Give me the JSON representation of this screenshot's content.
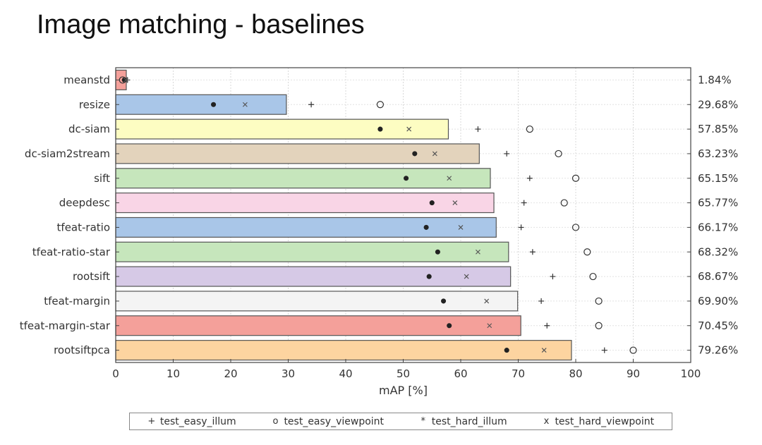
{
  "slide": {
    "title": "Image matching - baselines"
  },
  "chart_data": {
    "type": "bar",
    "orientation": "horizontal",
    "title": "Image matching - baselines",
    "xlabel": "mAP [%]",
    "ylabel": "",
    "xlim": [
      0,
      100
    ],
    "xticks": [
      "0",
      "10",
      "20",
      "30",
      "40",
      "50",
      "60",
      "70",
      "80",
      "90",
      "100"
    ],
    "grid": true,
    "legend_position": "bottom",
    "categories": [
      "meanstd",
      "resize",
      "dc-siam",
      "dc-siam2stream",
      "sift",
      "deepdesc",
      "tfeat-ratio",
      "tfeat-ratio-star",
      "rootsift",
      "tfeat-margin",
      "tfeat-margin-star",
      "rootsiftpca"
    ],
    "values": [
      1.84,
      29.68,
      57.85,
      63.23,
      65.15,
      65.77,
      66.17,
      68.32,
      68.67,
      69.9,
      70.45,
      79.26
    ],
    "value_labels": [
      "1.84%",
      "29.68%",
      "57.85%",
      "63.23%",
      "65.15%",
      "65.77%",
      "66.17%",
      "68.32%",
      "68.67%",
      "69.90%",
      "70.45%",
      "79.26%"
    ],
    "bar_colors": [
      "#f4a09a",
      "#a9c6e8",
      "#fdfdc2",
      "#e3d3bc",
      "#c6e6bc",
      "#f9d5e6",
      "#a9c6e8",
      "#c6e6bc",
      "#d6c9e6",
      "#f4f4f4",
      "#f4a09a",
      "#fdd4a0"
    ],
    "series": [
      {
        "name": "test_easy_illum",
        "marker": "+",
        "values": [
          2.0,
          34,
          63,
          68,
          72,
          71,
          70.5,
          72.5,
          76,
          74,
          75,
          85
        ]
      },
      {
        "name": "test_easy_viewpoint",
        "marker": "o",
        "values": [
          1.2,
          46,
          72,
          77,
          80,
          78,
          80,
          82,
          83,
          84,
          84,
          90
        ]
      },
      {
        "name": "test_hard_illum",
        "marker": "*",
        "values": [
          1.5,
          17,
          46,
          52,
          50.5,
          55,
          54,
          56,
          54.5,
          57,
          58,
          68
        ]
      },
      {
        "name": "test_hard_viewpoint",
        "marker": "x",
        "values": [
          1.8,
          22.5,
          51,
          55.5,
          58,
          59,
          60,
          63,
          61,
          64.5,
          65,
          74.5
        ]
      }
    ]
  }
}
